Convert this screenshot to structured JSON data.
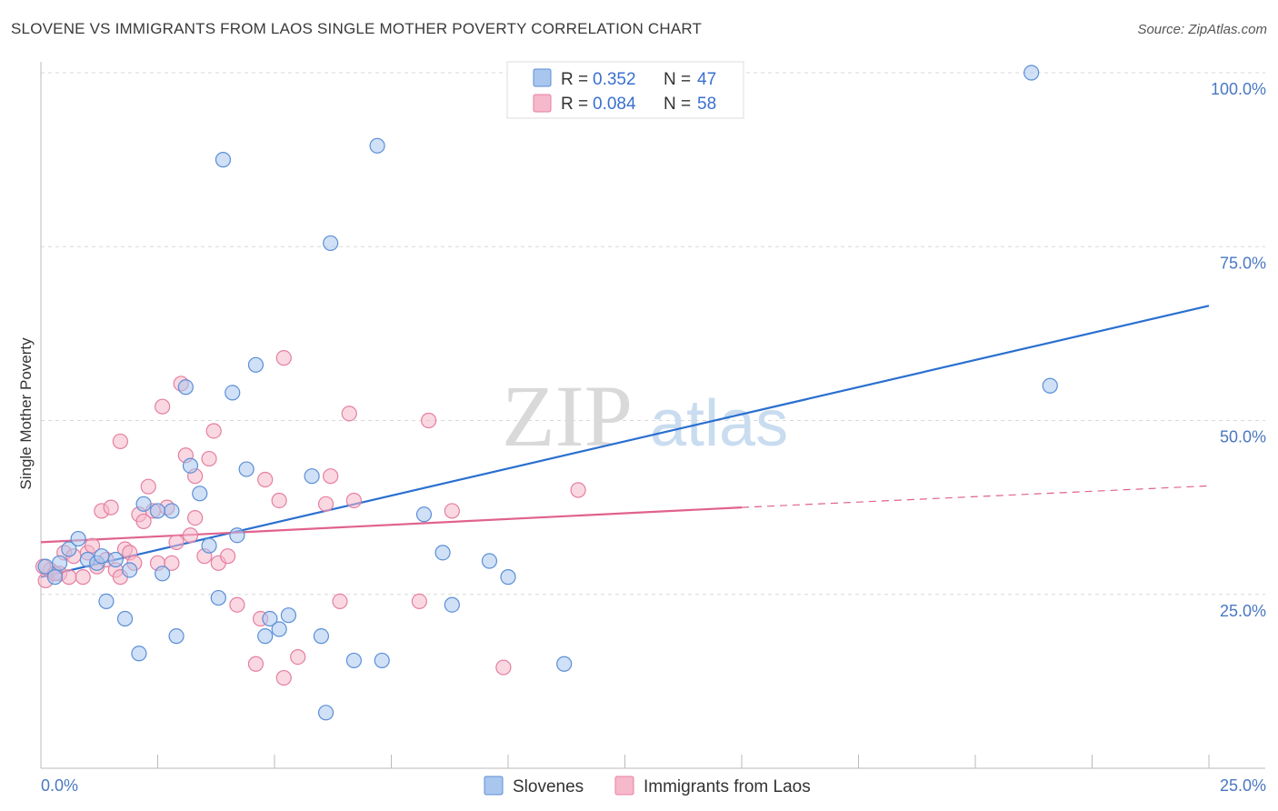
{
  "title": "SLOVENE VS IMMIGRANTS FROM LAOS SINGLE MOTHER POVERTY CORRELATION CHART",
  "source": "Source: ZipAtlas.com",
  "watermark": {
    "zip": "ZIP",
    "atlas": "atlas"
  },
  "colors": {
    "slovenes_fill": "#a9c6ee",
    "slovenes_stroke": "#5b8fd6",
    "slovenes_line": "#2a6fd0",
    "laos_fill": "#f6b8cb",
    "laos_stroke": "#e57fa0",
    "laos_line": "#e0628e",
    "axis_label": "#4a78c2"
  },
  "legend": {
    "items": [
      {
        "r_label": "R =",
        "r_value": "0.352",
        "n_label": "N =",
        "n_value": "47"
      },
      {
        "r_label": "R =",
        "r_value": "0.084",
        "n_label": "N =",
        "n_value": "58"
      }
    ]
  },
  "bottom_legend": [
    "Slovenes",
    "Immigrants from Laos"
  ],
  "chart_data": {
    "type": "scatter",
    "title": "SLOVENE VS IMMIGRANTS FROM LAOS SINGLE MOTHER POVERTY CORRELATION CHART",
    "xlabel": "",
    "ylabel": "Single Mother Poverty",
    "xlim": [
      0,
      25
    ],
    "ylim": [
      0,
      100
    ],
    "x_tick_labels": [
      "0.0%",
      "25.0%"
    ],
    "y_tick_labels": [
      "100.0%",
      "75.0%",
      "50.0%",
      "25.0%"
    ],
    "y_ticks": [
      100,
      75,
      50,
      25
    ],
    "grid": true,
    "legend_position": "top-center",
    "series": [
      {
        "name": "Slovenes",
        "points": [
          [
            0.1,
            29.0
          ],
          [
            0.3,
            27.5
          ],
          [
            0.4,
            29.5
          ],
          [
            0.6,
            31.5
          ],
          [
            0.8,
            33.0
          ],
          [
            1.0,
            30.0
          ],
          [
            1.2,
            29.5
          ],
          [
            1.3,
            30.5
          ],
          [
            1.4,
            24.0
          ],
          [
            1.6,
            30.0
          ],
          [
            1.8,
            21.5
          ],
          [
            1.9,
            28.5
          ],
          [
            2.1,
            16.5
          ],
          [
            2.2,
            38.0
          ],
          [
            2.5,
            37.0
          ],
          [
            2.6,
            28.0
          ],
          [
            2.8,
            37.0
          ],
          [
            2.9,
            19.0
          ],
          [
            3.1,
            54.8
          ],
          [
            3.2,
            43.5
          ],
          [
            3.4,
            39.5
          ],
          [
            3.6,
            32.0
          ],
          [
            3.8,
            24.5
          ],
          [
            3.9,
            87.5
          ],
          [
            4.1,
            54.0
          ],
          [
            4.2,
            33.5
          ],
          [
            4.4,
            43.0
          ],
          [
            4.6,
            58.0
          ],
          [
            4.8,
            19.0
          ],
          [
            4.9,
            21.5
          ],
          [
            5.1,
            20.0
          ],
          [
            5.3,
            22.0
          ],
          [
            5.8,
            42.0
          ],
          [
            6.0,
            19.0
          ],
          [
            6.1,
            8.0
          ],
          [
            6.2,
            75.5
          ],
          [
            6.7,
            15.5
          ],
          [
            7.2,
            89.5
          ],
          [
            7.3,
            15.5
          ],
          [
            8.2,
            36.5
          ],
          [
            8.6,
            31.0
          ],
          [
            8.8,
            23.5
          ],
          [
            9.6,
            29.8
          ],
          [
            10.0,
            27.5
          ],
          [
            11.2,
            15.0
          ],
          [
            21.2,
            100.0
          ],
          [
            21.6,
            55.0
          ]
        ],
        "trend": {
          "x": [
            0.0,
            25.0
          ],
          "y": [
            27.5,
            66.5
          ]
        }
      },
      {
        "name": "Immigrants from Laos",
        "points": [
          [
            0.1,
            27.0
          ],
          [
            0.2,
            28.5
          ],
          [
            0.4,
            28.0
          ],
          [
            0.5,
            31.0
          ],
          [
            0.6,
            27.5
          ],
          [
            0.7,
            30.5
          ],
          [
            0.9,
            27.5
          ],
          [
            1.0,
            31.0
          ],
          [
            1.1,
            32.0
          ],
          [
            1.2,
            29.0
          ],
          [
            1.3,
            37.0
          ],
          [
            1.4,
            30.0
          ],
          [
            1.5,
            37.5
          ],
          [
            1.6,
            28.5
          ],
          [
            1.7,
            27.5
          ],
          [
            1.7,
            47.0
          ],
          [
            1.8,
            31.5
          ],
          [
            1.9,
            31.0
          ],
          [
            2.0,
            29.5
          ],
          [
            2.1,
            36.5
          ],
          [
            2.2,
            35.5
          ],
          [
            2.3,
            40.5
          ],
          [
            2.4,
            37.0
          ],
          [
            2.5,
            29.5
          ],
          [
            2.6,
            52.0
          ],
          [
            2.7,
            37.5
          ],
          [
            2.8,
            29.5
          ],
          [
            2.9,
            32.5
          ],
          [
            3.0,
            55.3
          ],
          [
            3.1,
            45.0
          ],
          [
            3.2,
            33.5
          ],
          [
            3.3,
            42.0
          ],
          [
            3.3,
            36.0
          ],
          [
            3.5,
            30.5
          ],
          [
            3.6,
            44.5
          ],
          [
            3.7,
            48.5
          ],
          [
            3.8,
            29.5
          ],
          [
            4.0,
            30.5
          ],
          [
            4.2,
            23.5
          ],
          [
            4.6,
            15.0
          ],
          [
            4.7,
            21.5
          ],
          [
            4.8,
            41.5
          ],
          [
            5.1,
            38.5
          ],
          [
            5.2,
            13.0
          ],
          [
            5.2,
            59.0
          ],
          [
            5.5,
            16.0
          ],
          [
            6.1,
            38.0
          ],
          [
            6.2,
            42.0
          ],
          [
            6.4,
            24.0
          ],
          [
            6.7,
            38.5
          ],
          [
            6.6,
            51.0
          ],
          [
            8.1,
            24.0
          ],
          [
            8.3,
            50.0
          ],
          [
            8.8,
            37.0
          ],
          [
            9.9,
            14.5
          ],
          [
            11.5,
            40.0
          ],
          [
            0.05,
            29.0
          ],
          [
            0.3,
            28.0
          ]
        ],
        "trend": {
          "x": [
            0.0,
            15.0
          ],
          "y": [
            32.5,
            37.5
          ]
        },
        "trend_dashed_extension": {
          "x": [
            15.0,
            25.0
          ],
          "y": [
            37.5,
            40.6
          ]
        }
      }
    ]
  }
}
